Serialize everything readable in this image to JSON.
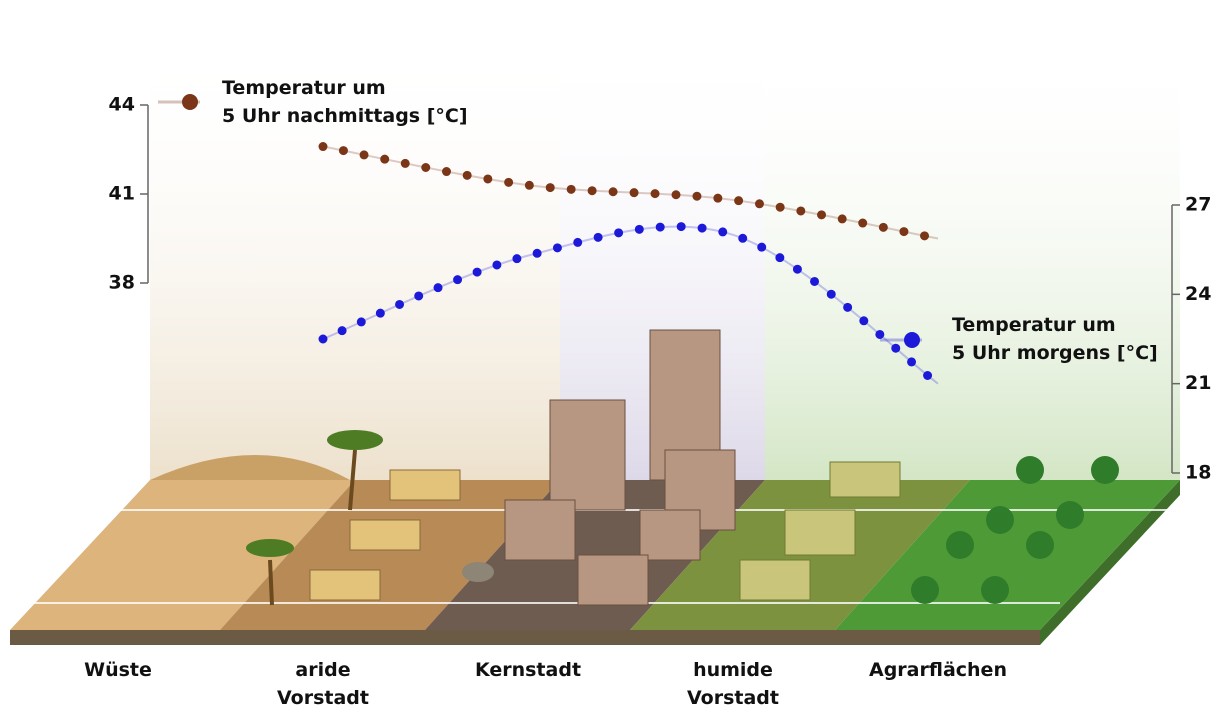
{
  "chart_data": {
    "type": "line",
    "categories": [
      "Wüste",
      "aride\nVorstadt",
      "Kernstadt",
      "humide\nVorstadt",
      "Agrarflächen"
    ],
    "series": [
      {
        "name": "Temperatur um\n5 Uhr nachmittags [°C]",
        "color": "#7b3517",
        "values": [
          null,
          42.6,
          41.3,
          40.8,
          39.5
        ]
      },
      {
        "name": "Temperatur um\n5 Uhr morgens [°C]",
        "color": "#1c1ad8",
        "axis": "y2",
        "values": [
          null,
          22.5,
          25.3,
          26.0,
          21.0
        ]
      }
    ],
    "ylim": [
      38,
      44
    ],
    "yticks": [
      38,
      41,
      44
    ],
    "y2lim": [
      18,
      27
    ],
    "y2ticks": [
      18,
      21,
      24,
      27
    ]
  }
}
